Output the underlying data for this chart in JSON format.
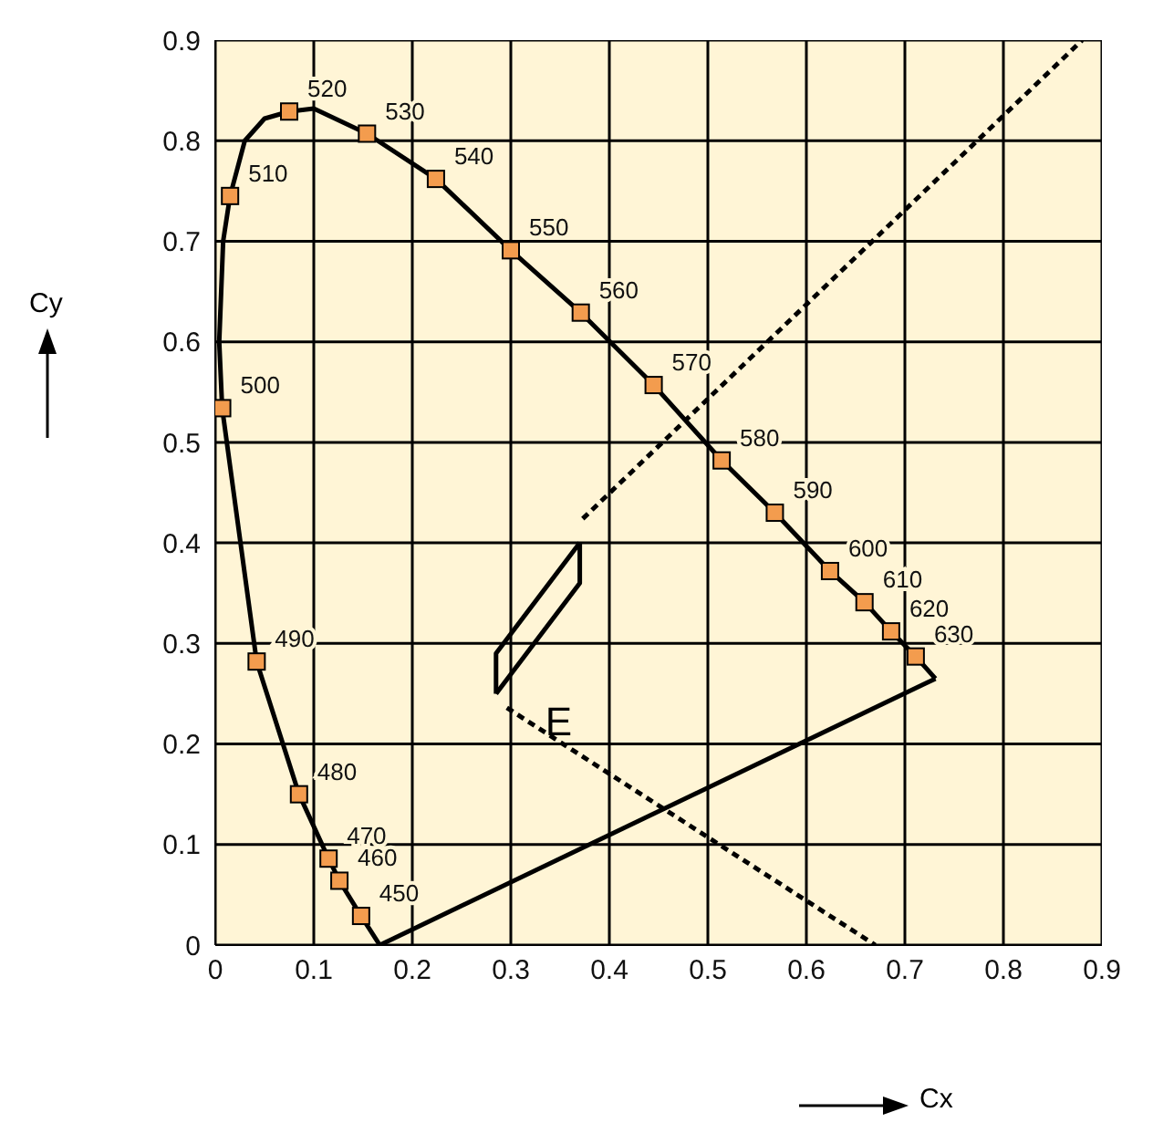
{
  "chart_data": {
    "type": "line",
    "xlabel": "Cx",
    "ylabel": "Cy",
    "xlim": [
      0,
      0.9
    ],
    "ylim": [
      0,
      0.9
    ],
    "xticks": [
      0,
      0.1,
      0.2,
      0.3,
      0.4,
      0.5,
      0.6,
      0.7,
      0.8,
      0.9
    ],
    "yticks": [
      0,
      0.1,
      0.2,
      0.3,
      0.4,
      0.5,
      0.6,
      0.7,
      0.8,
      0.9
    ],
    "grid": true,
    "series": [
      {
        "color": "#000000",
        "marker": "none",
        "line_style": "dashed",
        "x": [
          0.373,
          0.88
        ],
        "values": [
          0.424,
          0.9
        ]
      },
      {
        "color": "#000000",
        "marker": "none",
        "line_style": "dashed",
        "x": [
          0.296,
          0.67
        ],
        "values": [
          0.236,
          0
        ]
      },
      {
        "color": "#000000",
        "marker": "none",
        "line_style": "solid",
        "x": [
          0.167,
          0.148,
          0.126,
          0.115,
          0.085,
          0.042,
          0.007,
          0.004
        ],
        "values": [
          0,
          0.029,
          0.064,
          0.086,
          0.15,
          0.282,
          0.534,
          0.6
        ]
      },
      {
        "color": "#000000",
        "marker": "none",
        "line_style": "solid",
        "x": [
          0.004,
          0.008,
          0.015,
          0.03,
          0.05,
          0.075,
          0.1,
          0.154,
          0.224,
          0.3,
          0.371,
          0.445,
          0.514,
          0.568,
          0.624,
          0.659,
          0.686,
          0.711,
          0.731
        ],
        "values": [
          0.6,
          0.7,
          0.745,
          0.8,
          0.822,
          0.829,
          0.832,
          0.807,
          0.762,
          0.691,
          0.629,
          0.557,
          0.482,
          0.43,
          0.372,
          0.341,
          0.312,
          0.287,
          0.265
        ]
      },
      {
        "color": "#000000",
        "marker": "none",
        "line_style": "solid",
        "x": [
          0.167,
          0.731
        ],
        "values": [
          0,
          0.265
        ]
      },
      {
        "color": "#000000",
        "marker": "none",
        "line_style": "solid",
        "x": [
          0.285,
          0.285,
          0.37
        ],
        "values": [
          0.25,
          0.29,
          0.4
        ]
      },
      {
        "color": "#000000",
        "marker": "none",
        "line_style": "solid",
        "x": [
          0.285,
          0.37,
          0.37
        ],
        "values": [
          0.25,
          0.36,
          0.4
        ]
      },
      {
        "type": "scatter",
        "color": "#f39c4e",
        "marker": "square",
        "x": [
          0.148,
          0.126,
          0.115,
          0.085,
          0.042,
          0.007,
          0.015,
          0.075,
          0.154,
          0.224,
          0.3,
          0.371,
          0.445,
          0.514,
          0.568,
          0.624,
          0.659,
          0.686,
          0.711
        ],
        "values": [
          0.029,
          0.064,
          0.086,
          0.15,
          0.282,
          0.534,
          0.745,
          0.829,
          0.807,
          0.762,
          0.691,
          0.629,
          0.557,
          0.482,
          0.43,
          0.372,
          0.341,
          0.312,
          0.287
        ]
      }
    ],
    "annotations": [
      {
        "text": "450",
        "x": 0.148,
        "y": 0.029
      },
      {
        "text": "460",
        "x": 0.126,
        "y": 0.064
      },
      {
        "text": "470",
        "x": 0.115,
        "y": 0.086
      },
      {
        "text": "480",
        "x": 0.085,
        "y": 0.15
      },
      {
        "text": "490",
        "x": 0.042,
        "y": 0.282
      },
      {
        "text": "500",
        "x": 0.007,
        "y": 0.534
      },
      {
        "text": "510",
        "x": 0.015,
        "y": 0.745
      },
      {
        "text": "520",
        "x": 0.075,
        "y": 0.829
      },
      {
        "text": "530",
        "x": 0.154,
        "y": 0.807
      },
      {
        "text": "540",
        "x": 0.224,
        "y": 0.762
      },
      {
        "text": "550",
        "x": 0.3,
        "y": 0.691
      },
      {
        "text": "560",
        "x": 0.371,
        "y": 0.629
      },
      {
        "text": "570",
        "x": 0.445,
        "y": 0.557
      },
      {
        "text": "580",
        "x": 0.514,
        "y": 0.482
      },
      {
        "text": "590",
        "x": 0.568,
        "y": 0.43
      },
      {
        "text": "600",
        "x": 0.624,
        "y": 0.372
      },
      {
        "text": "610",
        "x": 0.659,
        "y": 0.341
      },
      {
        "text": "620",
        "x": 0.686,
        "y": 0.312
      },
      {
        "text": "630",
        "x": 0.711,
        "y": 0.287
      },
      "E"
    ]
  }
}
